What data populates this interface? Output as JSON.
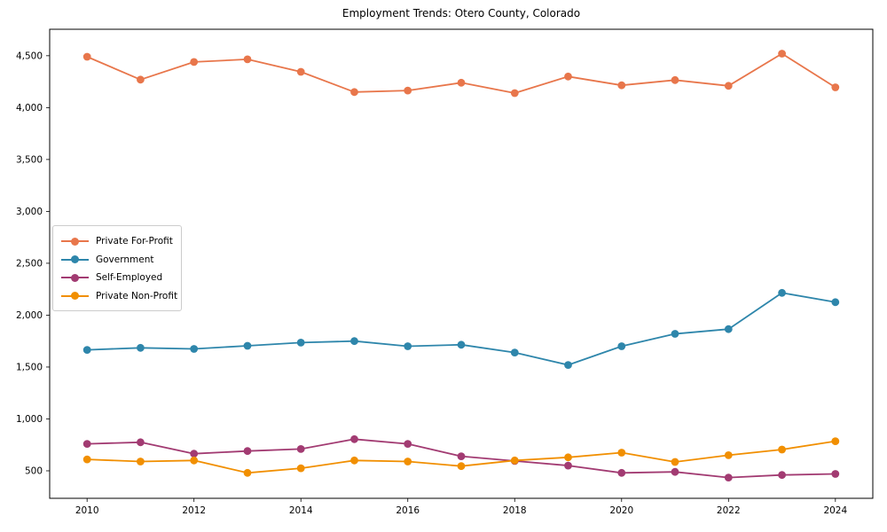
{
  "chart_data": {
    "type": "line",
    "title": "Employment Trends: Otero County, Colorado",
    "xlabel": "",
    "ylabel": "",
    "x": [
      2010,
      2011,
      2012,
      2013,
      2014,
      2015,
      2016,
      2017,
      2018,
      2019,
      2020,
      2021,
      2022,
      2023,
      2024
    ],
    "xticks": [
      2010,
      2012,
      2014,
      2016,
      2018,
      2020,
      2022,
      2024
    ],
    "yticks": [
      500,
      1000,
      1500,
      2000,
      2500,
      3000,
      3500,
      4000,
      4500
    ],
    "xlim": [
      2009.3,
      2024.7
    ],
    "ylim": [
      235,
      4755
    ],
    "grid": false,
    "legend_position": "center-left",
    "marker": "circle",
    "series": [
      {
        "name": "Private For-Profit",
        "color": "#E8764B",
        "values": [
          4490,
          4270,
          4440,
          4465,
          4345,
          4150,
          4165,
          4240,
          4140,
          4300,
          4215,
          4265,
          4210,
          4520,
          4195
        ]
      },
      {
        "name": "Government",
        "color": "#2E86AB",
        "values": [
          1665,
          1685,
          1675,
          1705,
          1735,
          1750,
          1700,
          1715,
          1640,
          1520,
          1700,
          1820,
          1865,
          2215,
          2125
        ]
      },
      {
        "name": "Self-Employed",
        "color": "#A23B72",
        "values": [
          760,
          775,
          665,
          690,
          710,
          805,
          760,
          640,
          595,
          550,
          480,
          490,
          435,
          460,
          470
        ]
      },
      {
        "name": "Private Non-Profit",
        "color": "#F18F01",
        "values": [
          610,
          590,
          600,
          480,
          525,
          600,
          590,
          545,
          600,
          630,
          675,
          585,
          650,
          705,
          785
        ]
      }
    ]
  }
}
